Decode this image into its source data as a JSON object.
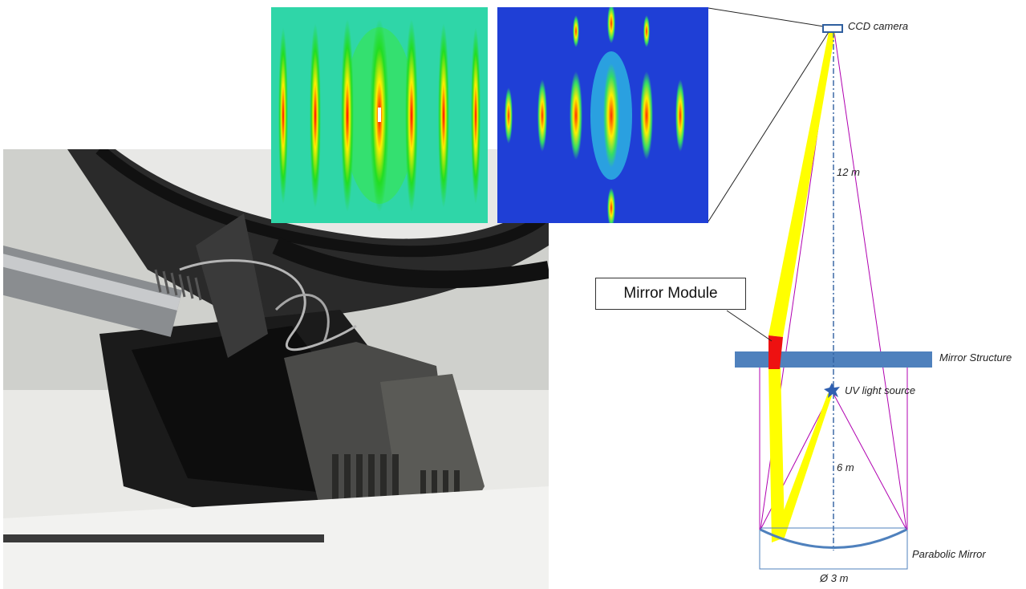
{
  "diagram": {
    "labels": {
      "ccd_camera": "CCD camera",
      "distance_upper": "12 m",
      "mirror_module": "Mirror Module",
      "mirror_structure": "Mirror Structure",
      "uv_source": "UV light source",
      "distance_lower": "6 m",
      "parabolic_mirror": "Parabolic Mirror",
      "diameter": "Ø 3 m"
    },
    "colors": {
      "beam": "#ffff00",
      "module": "#ee1111",
      "structure": "#4f81bd",
      "cone": "#b000b0",
      "axis": "#2f5f9f",
      "mirror": "#4f81bd"
    }
  },
  "images": {
    "photo": "mirror-module-hardware-photo",
    "pattern_left": "diffraction-pattern-simulated-icon",
    "pattern_right": "diffraction-pattern-measured-icon"
  }
}
